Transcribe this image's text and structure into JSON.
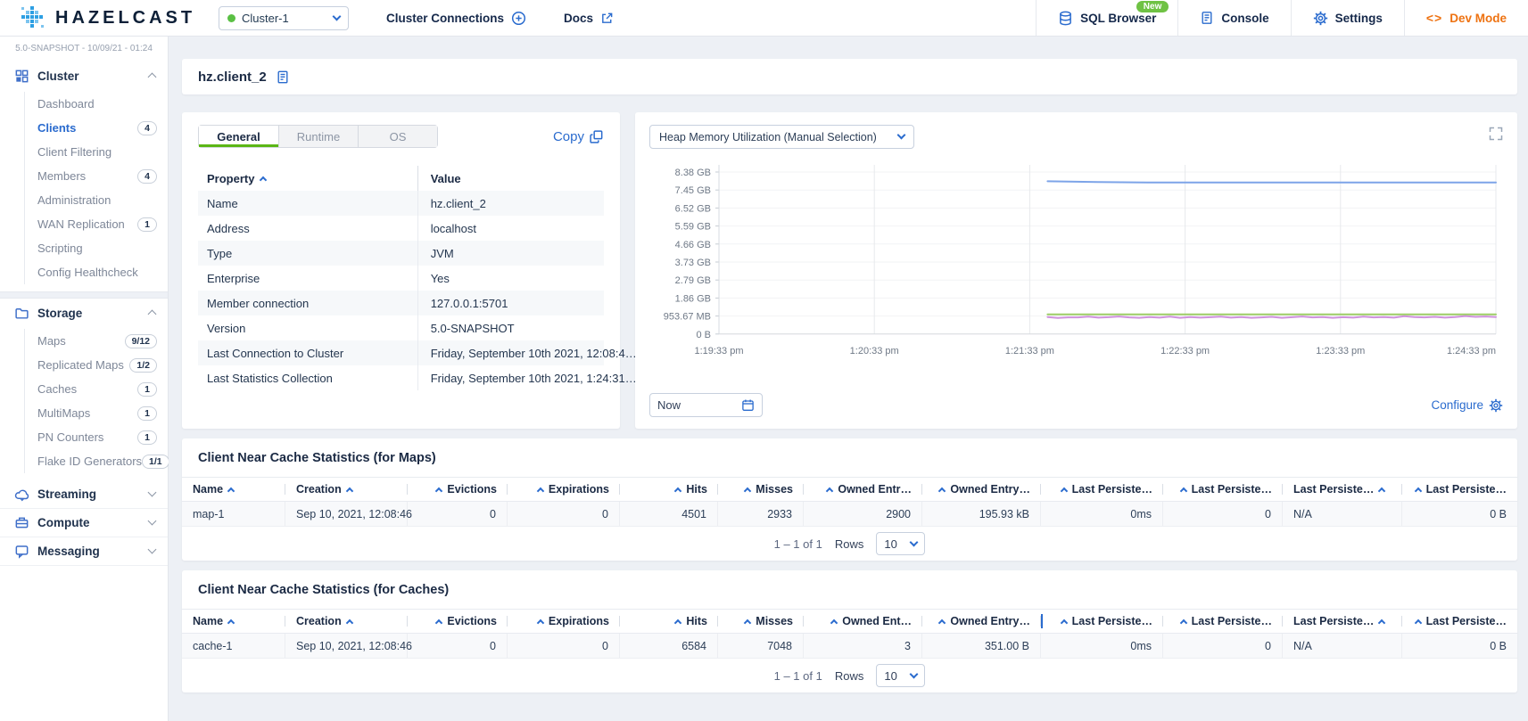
{
  "topbar": {
    "brand": "HAZELCAST",
    "cluster_select_value": "Cluster-1",
    "cluster_connections_label": "Cluster Connections",
    "docs_label": "Docs",
    "sql_browser_label": "SQL Browser",
    "sql_browser_badge": "New",
    "console_label": "Console",
    "settings_label": "Settings",
    "dev_mode_label": "Dev Mode",
    "accent_orange": "#ee7211",
    "badge_green": "#6fc244"
  },
  "sidebar": {
    "version_line": "5.0-SNAPSHOT - 10/09/21 - 01:24",
    "sections": [
      {
        "label": "Cluster",
        "icon": "grid-icon",
        "expanded": true,
        "items": [
          {
            "label": "Dashboard"
          },
          {
            "label": "Clients",
            "badge": "4",
            "active": true
          },
          {
            "label": "Client Filtering"
          },
          {
            "label": "Members",
            "badge": "4"
          },
          {
            "label": "Administration"
          },
          {
            "label": "WAN Replication",
            "badge": "1"
          },
          {
            "label": "Scripting"
          },
          {
            "label": "Config Healthcheck"
          }
        ]
      },
      {
        "label": "Storage",
        "icon": "folder-icon",
        "expanded": true,
        "items": [
          {
            "label": "Maps",
            "badge": "9/12"
          },
          {
            "label": "Replicated Maps",
            "badge": "1/2"
          },
          {
            "label": "Caches",
            "badge": "1"
          },
          {
            "label": "MultiMaps",
            "badge": "1"
          },
          {
            "label": "PN Counters",
            "badge": "1"
          },
          {
            "label": "Flake ID Generators",
            "badge": "1/1"
          }
        ]
      },
      {
        "label": "Streaming",
        "icon": "cloud-icon",
        "expanded": false,
        "items": []
      },
      {
        "label": "Compute",
        "icon": "compute-icon",
        "expanded": false,
        "items": []
      },
      {
        "label": "Messaging",
        "icon": "chat-icon",
        "expanded": false,
        "items": []
      }
    ]
  },
  "page": {
    "title": "hz.client_2"
  },
  "details": {
    "tabs": [
      "General",
      "Runtime",
      "OS"
    ],
    "active_tab": "General",
    "copy_label": "Copy",
    "columns": [
      "Property",
      "Value"
    ],
    "rows": [
      [
        "Name",
        "hz.client_2"
      ],
      [
        "Address",
        "localhost"
      ],
      [
        "Type",
        "JVM"
      ],
      [
        "Enterprise",
        "Yes"
      ],
      [
        "Member connection",
        "127.0.0.1:5701"
      ],
      [
        "Version",
        "5.0-SNAPSHOT"
      ],
      [
        "Last Connection to Cluster",
        "Friday, September 10th 2021, 12:08:4…"
      ],
      [
        "Last Statistics Collection",
        "Friday, September 10th 2021, 1:24:31…"
      ]
    ]
  },
  "chart_panel": {
    "metric_select_value": "Heap Memory Utilization (Manual Selection)",
    "time_input_value": "Now",
    "configure_label": "Configure"
  },
  "chart_data": {
    "type": "line",
    "title": "Heap Memory Utilization (Manual Selection)",
    "legend": "none",
    "grid": true,
    "y_ticks": [
      "8.38 GB",
      "7.45 GB",
      "6.52 GB",
      "5.59 GB",
      "4.66 GB",
      "3.73 GB",
      "2.79 GB",
      "1.86 GB",
      "953.67 MB",
      "0 B"
    ],
    "y_tick_values_gb": [
      8.38,
      7.45,
      6.52,
      5.59,
      4.66,
      3.73,
      2.79,
      1.86,
      0.93,
      0
    ],
    "ylim_gb": [
      0,
      8.8
    ],
    "x_ticks": [
      "1:19:33 pm",
      "1:20:33 pm",
      "1:21:33 pm",
      "1:22:33 pm",
      "1:23:33 pm",
      "1:24:33 pm"
    ],
    "series": [
      {
        "name": "line-blue",
        "color": "#7da4e8",
        "start_frac": 0.423,
        "values_gb": [
          7.9,
          7.86,
          7.84,
          7.84,
          7.84,
          7.84,
          7.84,
          7.84,
          7.84,
          7.84
        ]
      },
      {
        "name": "line-green",
        "color": "#9ccc65",
        "start_frac": 0.423,
        "values_gb": [
          1.02,
          1.02
        ]
      },
      {
        "name": "line-purple",
        "color": "#cf92dd",
        "start_frac": 0.423,
        "values_gb": [
          0.88,
          0.83,
          0.86,
          0.86,
          0.9,
          0.85,
          0.87,
          0.91,
          0.86,
          0.84,
          0.88,
          0.85,
          0.9,
          0.84,
          0.88,
          0.85,
          0.87,
          0.9,
          0.85,
          0.88,
          0.84,
          0.86,
          0.89,
          0.84,
          0.87,
          0.91,
          0.86,
          0.88,
          0.84,
          0.87,
          0.85,
          0.9,
          0.86,
          0.88,
          0.85,
          0.92,
          0.88,
          0.86,
          0.89,
          0.85,
          0.88,
          0.93,
          0.89,
          0.91,
          0.88
        ]
      }
    ]
  },
  "maps_stats": {
    "title": "Client Near Cache Statistics (for Maps)",
    "columns": [
      {
        "label": "Name",
        "align": "left",
        "arrow": "after"
      },
      {
        "label": "Creation",
        "align": "left",
        "arrow": "after"
      },
      {
        "label": "Evictions",
        "align": "right",
        "arrow": "before"
      },
      {
        "label": "Expirations",
        "align": "right",
        "arrow": "before"
      },
      {
        "label": "Hits",
        "align": "right",
        "arrow": "before"
      },
      {
        "label": "Misses",
        "align": "right",
        "arrow": "before"
      },
      {
        "label": "Owned Entr…",
        "align": "right",
        "arrow": "before"
      },
      {
        "label": "Owned Entry…",
        "align": "right",
        "arrow": "before"
      },
      {
        "label": "Last Persiste…",
        "align": "right",
        "arrow": "before"
      },
      {
        "label": "Last Persiste…",
        "align": "right",
        "arrow": "before"
      },
      {
        "label": "Last Persiste…",
        "align": "left",
        "arrow": "after"
      },
      {
        "label": "Last Persiste…",
        "align": "right",
        "arrow": "before"
      }
    ],
    "rows": [
      [
        "map-1",
        "Sep 10, 2021, 12:08:46",
        "0",
        "0",
        "4501",
        "2933",
        "2900",
        "195.93 kB",
        "0ms",
        "0",
        "N/A",
        "0 B"
      ]
    ],
    "pagination": {
      "range": "1 – 1 of 1",
      "rows_label": "Rows",
      "page_size": "10"
    }
  },
  "caches_stats": {
    "title": "Client Near Cache Statistics (for Caches)",
    "highlight_divider_before_column": 8,
    "columns": [
      {
        "label": "Name",
        "align": "left",
        "arrow": "after"
      },
      {
        "label": "Creation",
        "align": "left",
        "arrow": "after"
      },
      {
        "label": "Evictions",
        "align": "right",
        "arrow": "before"
      },
      {
        "label": "Expirations",
        "align": "right",
        "arrow": "before"
      },
      {
        "label": "Hits",
        "align": "right",
        "arrow": "before"
      },
      {
        "label": "Misses",
        "align": "right",
        "arrow": "before"
      },
      {
        "label": "Owned Ent…",
        "align": "right",
        "arrow": "before"
      },
      {
        "label": "Owned Entry…",
        "align": "right",
        "arrow": "before"
      },
      {
        "label": "Last Persiste…",
        "align": "right",
        "arrow": "before"
      },
      {
        "label": "Last Persiste…",
        "align": "right",
        "arrow": "before"
      },
      {
        "label": "Last Persiste…",
        "align": "left",
        "arrow": "after"
      },
      {
        "label": "Last Persiste…",
        "align": "right",
        "arrow": "before"
      }
    ],
    "rows": [
      [
        "cache-1",
        "Sep 10, 2021, 12:08:46",
        "0",
        "0",
        "6584",
        "7048",
        "3",
        "351.00 B",
        "0ms",
        "0",
        "N/A",
        "0 B"
      ]
    ],
    "pagination": {
      "range": "1 – 1 of 1",
      "rows_label": "Rows",
      "page_size": "10"
    }
  }
}
